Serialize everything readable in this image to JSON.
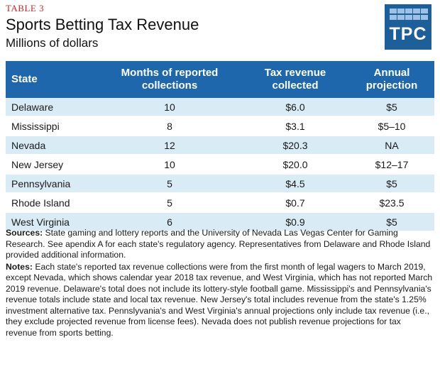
{
  "header": {
    "table_label": "TABLE 3",
    "title": "Sports Betting Tax Revenue",
    "subtitle": "Millions of dollars"
  },
  "logo": {
    "text": "TPC",
    "color": "#1c5f99"
  },
  "table": {
    "header_color": "#1f67ad",
    "stripe_color": "#d9ecf6",
    "columns": [
      "State",
      "Months of reported collections",
      "Tax revenue collected",
      "Annual projection"
    ],
    "rows": [
      {
        "state": "Delaware",
        "months": "10",
        "tax": "$6.0",
        "projection": "$5"
      },
      {
        "state": "Mississippi",
        "months": "8",
        "tax": "$3.1",
        "projection": "$5–10"
      },
      {
        "state": "Nevada",
        "months": "12",
        "tax": "$20.3",
        "projection": "NA"
      },
      {
        "state": "New Jersey",
        "months": "10",
        "tax": "$20.0",
        "projection": "$12–17"
      },
      {
        "state": "Pennsylvania",
        "months": "5",
        "tax": "$4.5",
        "projection": "$5"
      },
      {
        "state": "Rhode Island",
        "months": "5",
        "tax": "$0.7",
        "projection": "$23.5"
      },
      {
        "state": "West Virginia",
        "months": "6",
        "tax": "$0.9",
        "projection": "$5"
      }
    ]
  },
  "sources": {
    "label": "Sources:",
    "text": "State gaming and lottery reports and the University of Nevada Las Vegas Center for Gaming Research. See apendix A for each state's regulatory agency. Representatives from Delaware and Rhode Island provided additional information."
  },
  "notes": {
    "label": "Notes:",
    "text": "Each state's reported tax revenue collections were from the first month of legal wagers to March 2019, except Nevada, which shows calendar year 2018 tax revenue, and West Virginia, which has not reported March 2019 revenue. Delaware's total does not include its lottery-style football game. Mississippi's and Pennsylvania's revenue totals include state and local tax revenue. New Jersey's total includes revenue from the state's 1.25% investment alternative tax. Pennslyvania's and West Virginia's annual projections only include tax revenue  (i.e., they exclude projected revenue from license fees). Nevada does not publish revenue projections for tax revenue from sports betting."
  }
}
